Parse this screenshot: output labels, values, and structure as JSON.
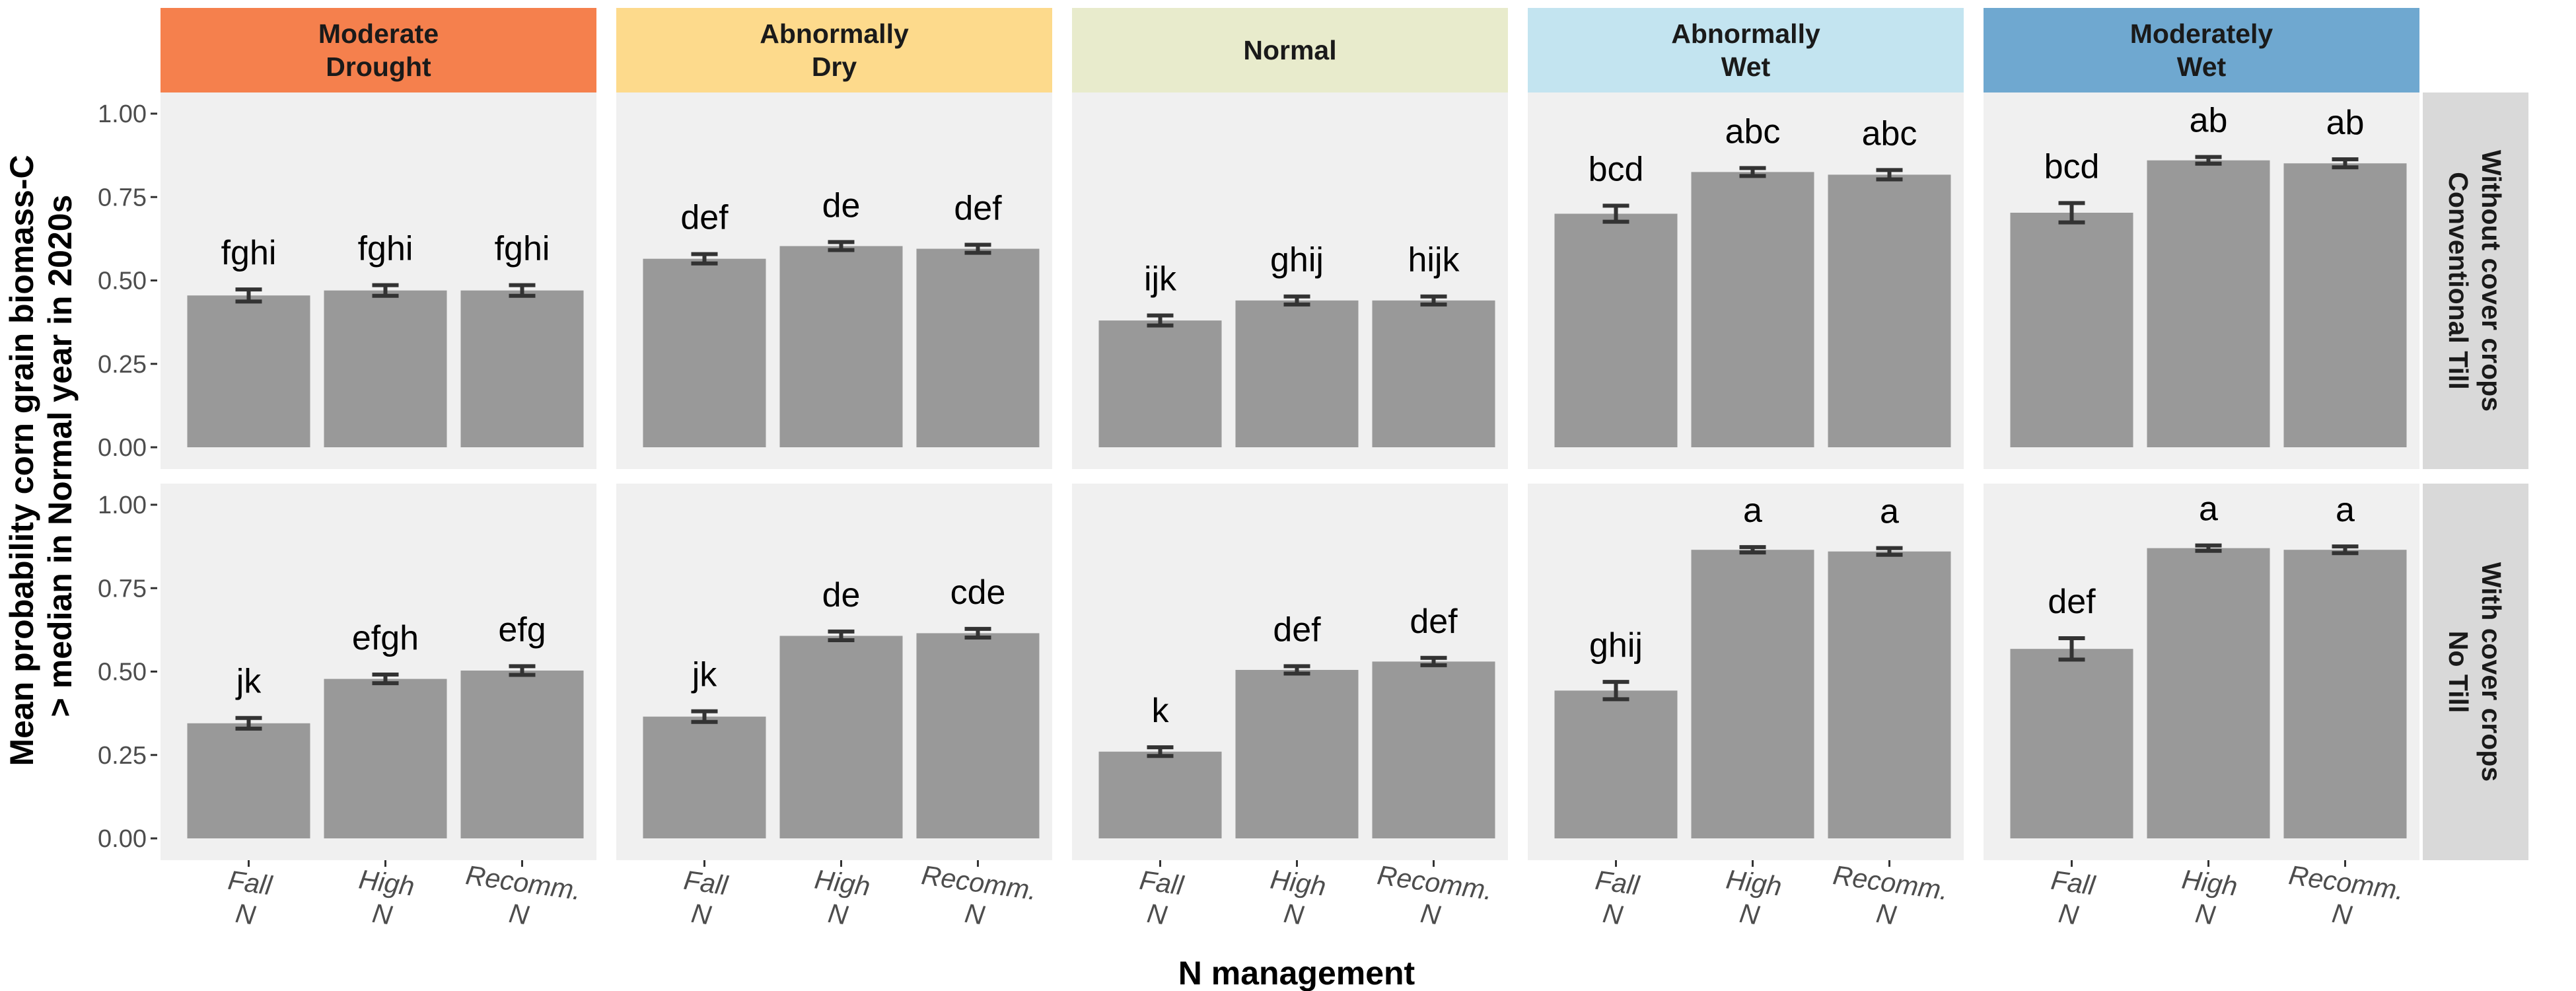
{
  "chart_data": {
    "type": "bar",
    "xlabel": "N management",
    "ylabel_lines": [
      "Mean probability corn grain biomass-C",
      "> median in Normal year in 2020s"
    ],
    "ylim": [
      0,
      1.05
    ],
    "yticks": [
      "0.00",
      "0.25",
      "0.50",
      "0.75",
      "1.00"
    ],
    "ytick_values": [
      0,
      0.25,
      0.5,
      0.75,
      1.0
    ],
    "categories": [
      [
        "Fall",
        "N"
      ],
      [
        "High",
        "N"
      ],
      [
        "Recomm.",
        "N"
      ]
    ],
    "grid": false,
    "facet_columns": [
      {
        "lines": [
          "Moderate",
          "Drought"
        ],
        "color": "#F5804D"
      },
      {
        "lines": [
          "Abnormally",
          "Dry"
        ],
        "color": "#FDDA8C"
      },
      {
        "lines": [
          "Normal"
        ],
        "color": "#E8EBCC"
      },
      {
        "lines": [
          "Abnormally",
          "Wet"
        ],
        "color": "#C3E4F0"
      },
      {
        "lines": [
          "Moderately",
          "Wet"
        ],
        "color": "#6FA8D0"
      }
    ],
    "facet_rows": [
      {
        "lines": [
          "Without cover crops",
          "Conventional Till"
        ],
        "panels": [
          {
            "values": [
              0.455,
              0.47,
              0.47
            ],
            "errors": [
              0.018,
              0.016,
              0.016
            ],
            "labels": [
              "fghi",
              "fghi",
              "fghi"
            ]
          },
          {
            "values": [
              0.565,
              0.603,
              0.595
            ],
            "errors": [
              0.014,
              0.012,
              0.012
            ],
            "labels": [
              "def",
              "de",
              "def"
            ]
          },
          {
            "values": [
              0.38,
              0.44,
              0.44
            ],
            "errors": [
              0.015,
              0.012,
              0.012
            ],
            "labels": [
              "ijk",
              "ghij",
              "hijk"
            ]
          },
          {
            "values": [
              0.7,
              0.825,
              0.817
            ],
            "errors": [
              0.024,
              0.012,
              0.014
            ],
            "labels": [
              "bcd",
              "abc",
              "abc"
            ]
          },
          {
            "values": [
              0.703,
              0.86,
              0.851
            ],
            "errors": [
              0.029,
              0.01,
              0.012
            ],
            "labels": [
              "bcd",
              "ab",
              "ab"
            ]
          }
        ]
      },
      {
        "lines": [
          "With cover crops",
          "No Till"
        ],
        "panels": [
          {
            "values": [
              0.345,
              0.478,
              0.503
            ],
            "errors": [
              0.016,
              0.013,
              0.013
            ],
            "labels": [
              "jk",
              "efgh",
              "efg"
            ]
          },
          {
            "values": [
              0.365,
              0.607,
              0.615
            ],
            "errors": [
              0.016,
              0.013,
              0.013
            ],
            "labels": [
              "jk",
              "de",
              "cde"
            ]
          },
          {
            "values": [
              0.26,
              0.505,
              0.53
            ],
            "errors": [
              0.013,
              0.011,
              0.011
            ],
            "labels": [
              "k",
              "def",
              "def"
            ]
          },
          {
            "values": [
              0.443,
              0.865,
              0.86
            ],
            "errors": [
              0.026,
              0.008,
              0.01
            ],
            "labels": [
              "ghij",
              "a",
              "a"
            ]
          },
          {
            "values": [
              0.568,
              0.87,
              0.865
            ],
            "errors": [
              0.032,
              0.008,
              0.01
            ],
            "labels": [
              "def",
              "a",
              "a"
            ]
          }
        ]
      }
    ],
    "colors": {
      "bar": "#999999",
      "panel": "#f0f0f0",
      "row_strip": "#d9d9d9",
      "error": "#333333"
    }
  }
}
